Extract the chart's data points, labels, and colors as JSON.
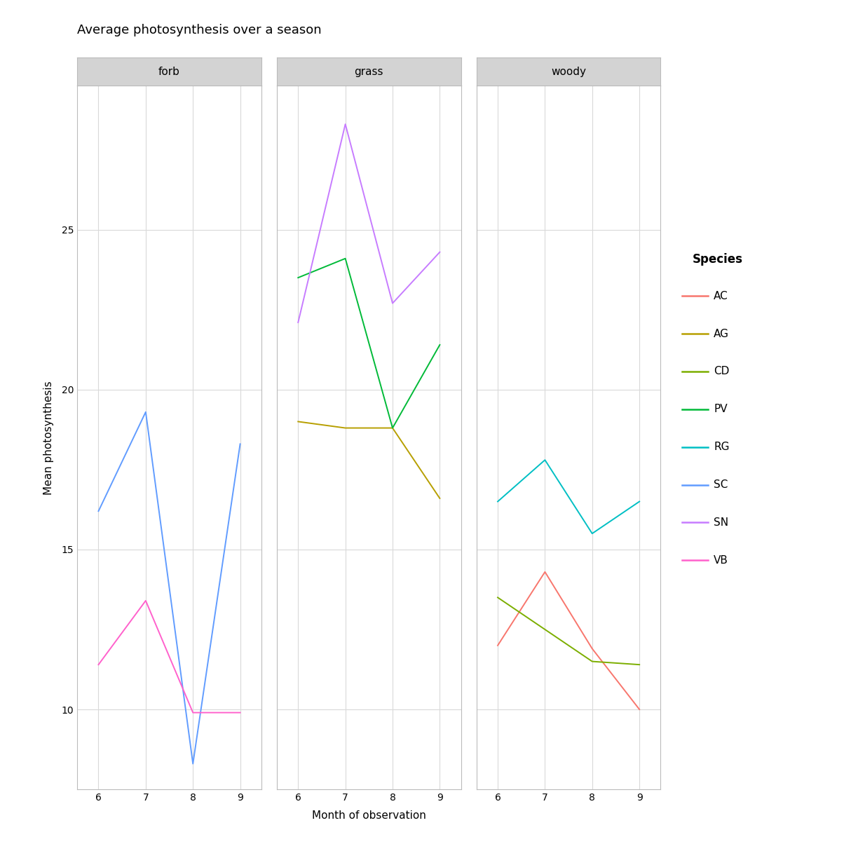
{
  "title": "Average photosynthesis over a season",
  "xlabel": "Month of observation",
  "ylabel": "Mean photosynthesis",
  "panels": [
    "forb",
    "grass",
    "woody"
  ],
  "months": [
    6,
    7,
    8,
    9
  ],
  "ylim": [
    7.5,
    29.5
  ],
  "yticks": [
    10,
    15,
    20,
    25
  ],
  "species_colors": {
    "AC": "#F8766D",
    "AG": "#B79F00",
    "CD": "#7CAE00",
    "PV": "#00BA38",
    "RG": "#00BFC4",
    "SC": "#619CFF",
    "SN": "#C77CFF",
    "VB": "#FF61CC"
  },
  "data": {
    "forb": {
      "SC": [
        16.2,
        19.3,
        8.3,
        18.3
      ],
      "VB": [
        11.4,
        13.4,
        9.9,
        9.9
      ]
    },
    "grass": {
      "AG": [
        19.0,
        18.8,
        18.8,
        16.6
      ],
      "PV": [
        23.5,
        24.1,
        18.8,
        21.4
      ],
      "SN": [
        22.1,
        28.3,
        22.7,
        24.3
      ]
    },
    "woody": {
      "AC": [
        12.0,
        14.3,
        11.9,
        10.0
      ],
      "CD": [
        13.5,
        12.5,
        11.5,
        11.4
      ],
      "RG": [
        16.5,
        17.8,
        15.5,
        16.5
      ]
    }
  },
  "background_color": "#FFFFFF",
  "panel_header_color": "#D3D3D3",
  "grid_color": "#D9D9D9",
  "plot_bg_color": "#FFFFFF",
  "title_fontsize": 13,
  "label_fontsize": 11,
  "tick_fontsize": 10,
  "legend_title_fontsize": 12,
  "legend_fontsize": 11,
  "line_width": 1.4,
  "species_order": [
    "AC",
    "AG",
    "CD",
    "PV",
    "RG",
    "SC",
    "SN",
    "VB"
  ]
}
